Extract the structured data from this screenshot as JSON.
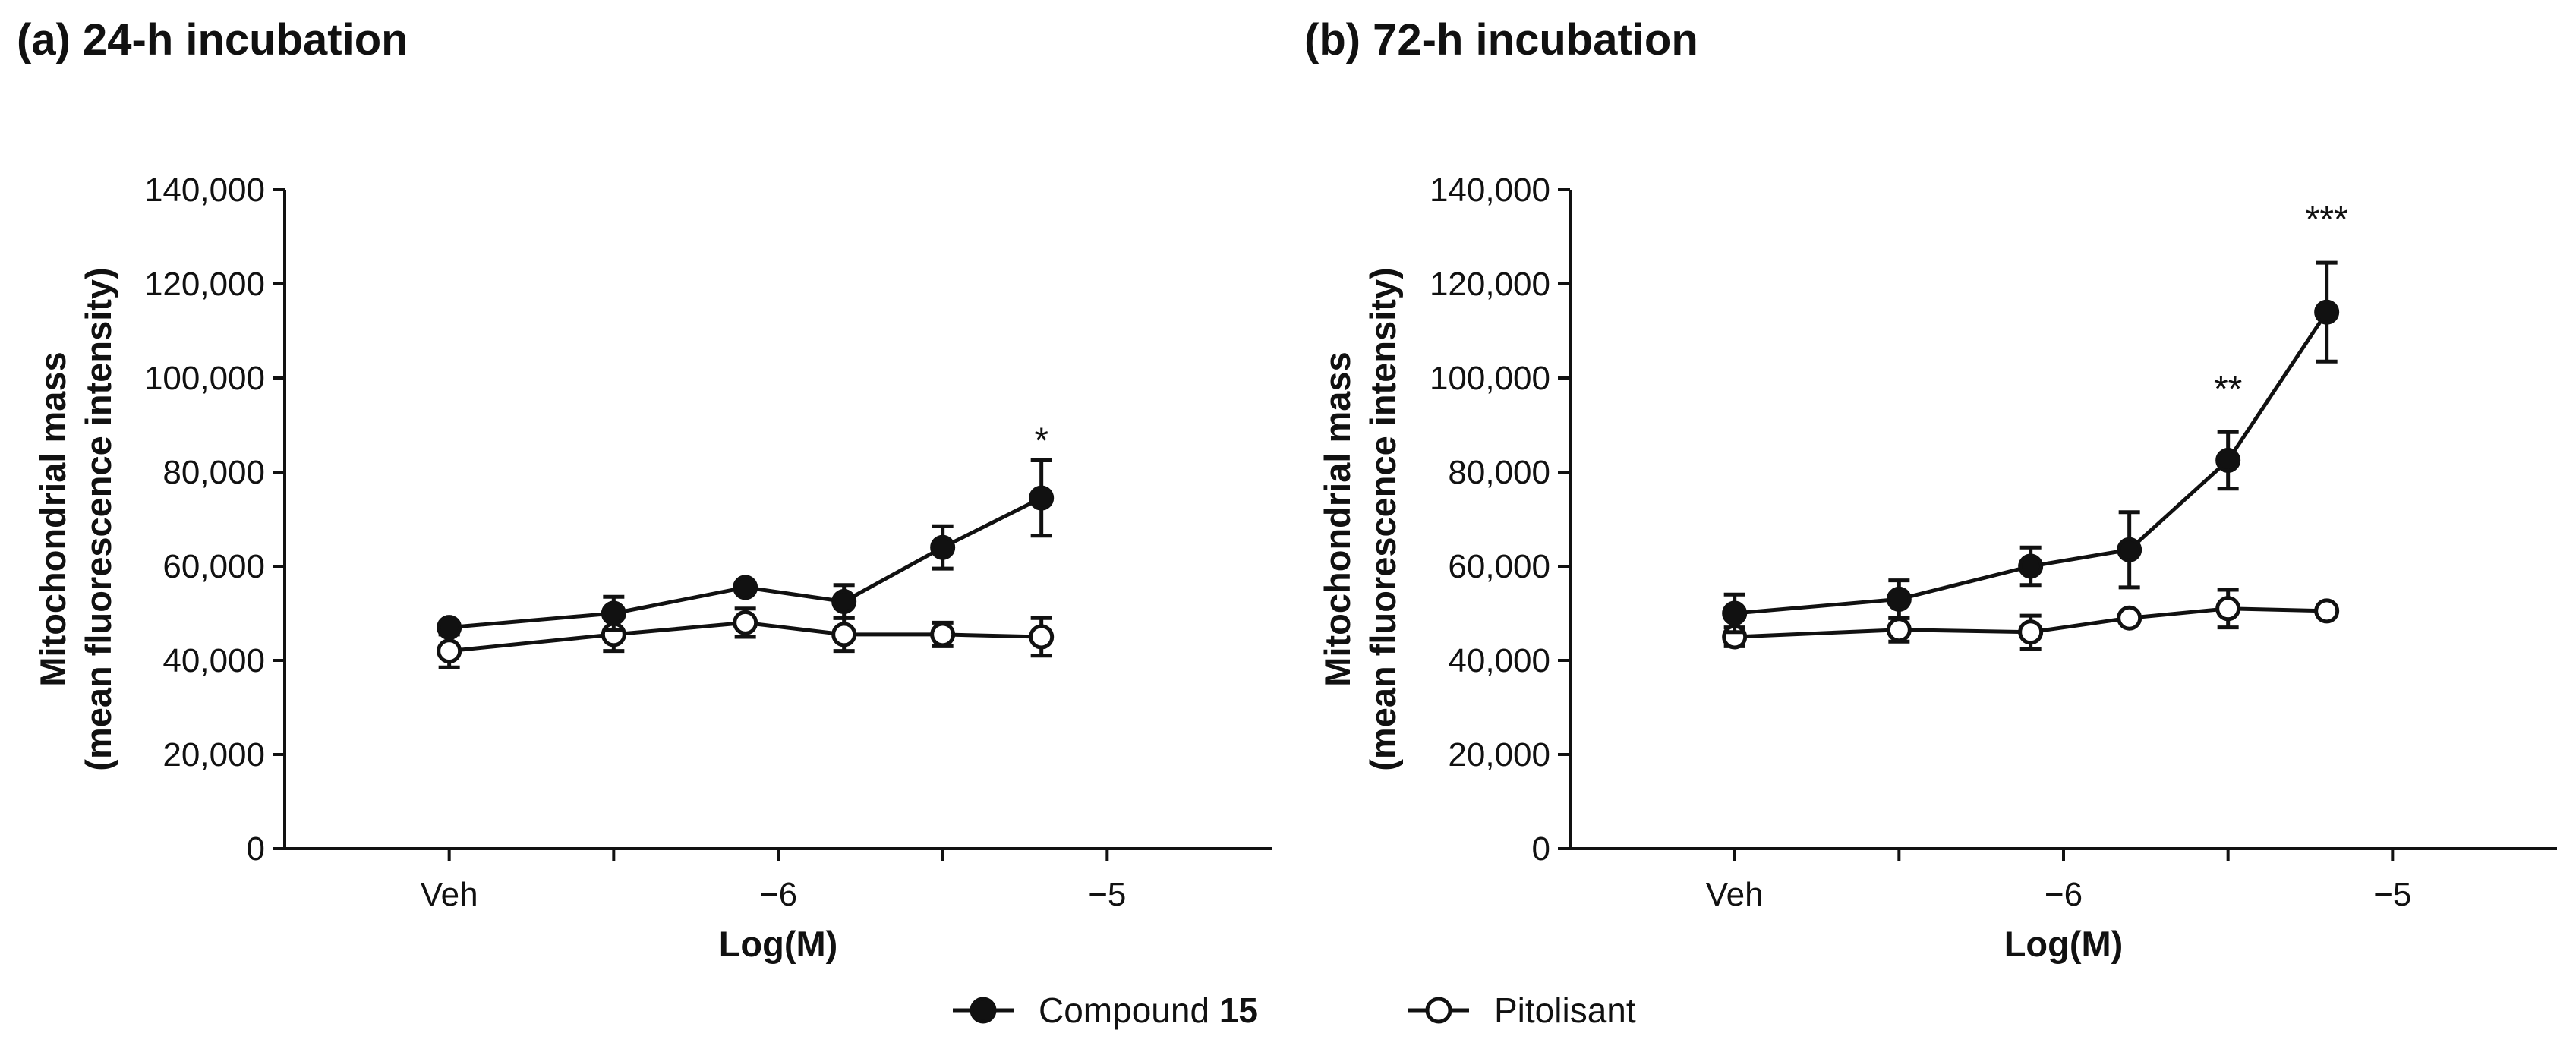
{
  "chart_data": [
    {
      "type": "line",
      "panel_title": "(a) 24-h incubation",
      "xlabel": "Log(M)",
      "ylabel_line1": "Mitochondrial mass",
      "ylabel_line2": "(mean fluorescence intensity)",
      "ylim": [
        0,
        140000
      ],
      "yticks": [
        0,
        20000,
        40000,
        60000,
        80000,
        100000,
        120000,
        140000
      ],
      "ytick_labels": [
        "0",
        "20,000",
        "40,000",
        "60,000",
        "80,000",
        "100,000",
        "120,000",
        "140,000"
      ],
      "xlim": [
        -7.5,
        -4.5
      ],
      "xticks": [
        -7,
        -6.5,
        -6,
        -5.5,
        -5
      ],
      "xtick_labels": [
        {
          "x": -7,
          "label": "Veh"
        },
        {
          "x": -6,
          "label": "−6"
        },
        {
          "x": -5,
          "label": "−5"
        }
      ],
      "series": [
        {
          "name": "Compound 15",
          "marker": "filled-circle",
          "x": [
            -7,
            -6.5,
            -6.1,
            -5.8,
            -5.5,
            -5.2
          ],
          "y": [
            47000,
            50000,
            55500,
            52500,
            64000,
            74500
          ],
          "err": [
            1000,
            3500,
            1000,
            3500,
            4500,
            8000
          ]
        },
        {
          "name": "Pitolisant",
          "marker": "open-circle",
          "x": [
            -7,
            -6.5,
            -6.1,
            -5.8,
            -5.5,
            -5.2
          ],
          "y": [
            42000,
            45500,
            48000,
            45500,
            45500,
            45000
          ],
          "err": [
            3500,
            3500,
            3000,
            3500,
            2500,
            4000
          ]
        }
      ],
      "annotations": [
        {
          "x": -5.2,
          "y": 87000,
          "text": "*"
        }
      ]
    },
    {
      "type": "line",
      "panel_title": "(b) 72-h incubation",
      "xlabel": "Log(M)",
      "ylabel_line1": "Mitochondrial mass",
      "ylabel_line2": "(mean fluorescence intensity)",
      "ylim": [
        0,
        140000
      ],
      "yticks": [
        0,
        20000,
        40000,
        60000,
        80000,
        100000,
        120000,
        140000
      ],
      "ytick_labels": [
        "0",
        "20,000",
        "40,000",
        "60,000",
        "80,000",
        "100,000",
        "120,000",
        "140,000"
      ],
      "xlim": [
        -7.5,
        -4.5
      ],
      "xticks": [
        -7,
        -6.5,
        -6,
        -5.5,
        -5
      ],
      "xtick_labels": [
        {
          "x": -7,
          "label": "Veh"
        },
        {
          "x": -6,
          "label": "−6"
        },
        {
          "x": -5,
          "label": "−5"
        }
      ],
      "series": [
        {
          "name": "Compound 15",
          "marker": "filled-circle",
          "x": [
            -7,
            -6.5,
            -6.1,
            -5.8,
            -5.5,
            -5.2
          ],
          "y": [
            50000,
            53000,
            60000,
            63500,
            82500,
            114000
          ],
          "err": [
            4000,
            4000,
            4000,
            8000,
            6000,
            10500
          ]
        },
        {
          "name": "Pitolisant",
          "marker": "open-circle",
          "x": [
            -7,
            -6.5,
            -6.1,
            -5.8,
            -5.5,
            -5.2
          ],
          "y": [
            45000,
            46500,
            46000,
            49000,
            51000,
            50500
          ],
          "err": [
            2000,
            2500,
            3500,
            1000,
            4000,
            1000
          ]
        }
      ],
      "annotations": [
        {
          "x": -5.5,
          "y": 98000,
          "text": "**"
        },
        {
          "x": -5.2,
          "y": 134000,
          "text": "***"
        }
      ]
    }
  ],
  "legend": {
    "position": "bottom-center",
    "items": [
      {
        "text": "Compound ",
        "bold_text": "15",
        "marker": "filled-circle"
      },
      {
        "text": "Pitolisant",
        "bold_text": "",
        "marker": "open-circle"
      }
    ]
  },
  "colors": {
    "ink": "#111111",
    "background": "#ffffff"
  }
}
